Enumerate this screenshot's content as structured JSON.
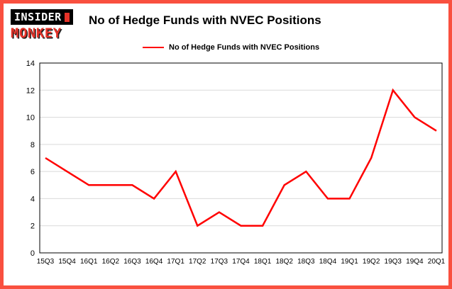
{
  "logo": {
    "line1": "INSIDER",
    "line2": "MONKEY"
  },
  "header": {
    "title": "No of Hedge Funds with NVEC Positions"
  },
  "legend": {
    "label": "No of Hedge Funds with NVEC Positions"
  },
  "colors": {
    "frame": "#f9503f",
    "line": "#ff0000",
    "grid": "#d9d9d9",
    "axis": "#000000",
    "logo_red": "#e53228"
  },
  "chart_data": {
    "type": "line",
    "title": "No of Hedge Funds with NVEC Positions",
    "xlabel": "",
    "ylabel": "",
    "categories": [
      "15Q3",
      "15Q4",
      "16Q1",
      "16Q2",
      "16Q3",
      "16Q4",
      "17Q1",
      "17Q2",
      "17Q3",
      "17Q4",
      "18Q1",
      "18Q2",
      "18Q3",
      "18Q4",
      "19Q1",
      "19Q2",
      "19Q3",
      "19Q4",
      "20Q1"
    ],
    "values": [
      7,
      6,
      5,
      5,
      5,
      4,
      6,
      2,
      3,
      2,
      2,
      5,
      6,
      4,
      4,
      7,
      12,
      10,
      9
    ],
    "ylim": [
      0,
      14
    ],
    "yticks": [
      0,
      2,
      4,
      6,
      8,
      10,
      12,
      14
    ],
    "line_color": "#ff0000",
    "grid": true,
    "legend_position": "top-center"
  }
}
